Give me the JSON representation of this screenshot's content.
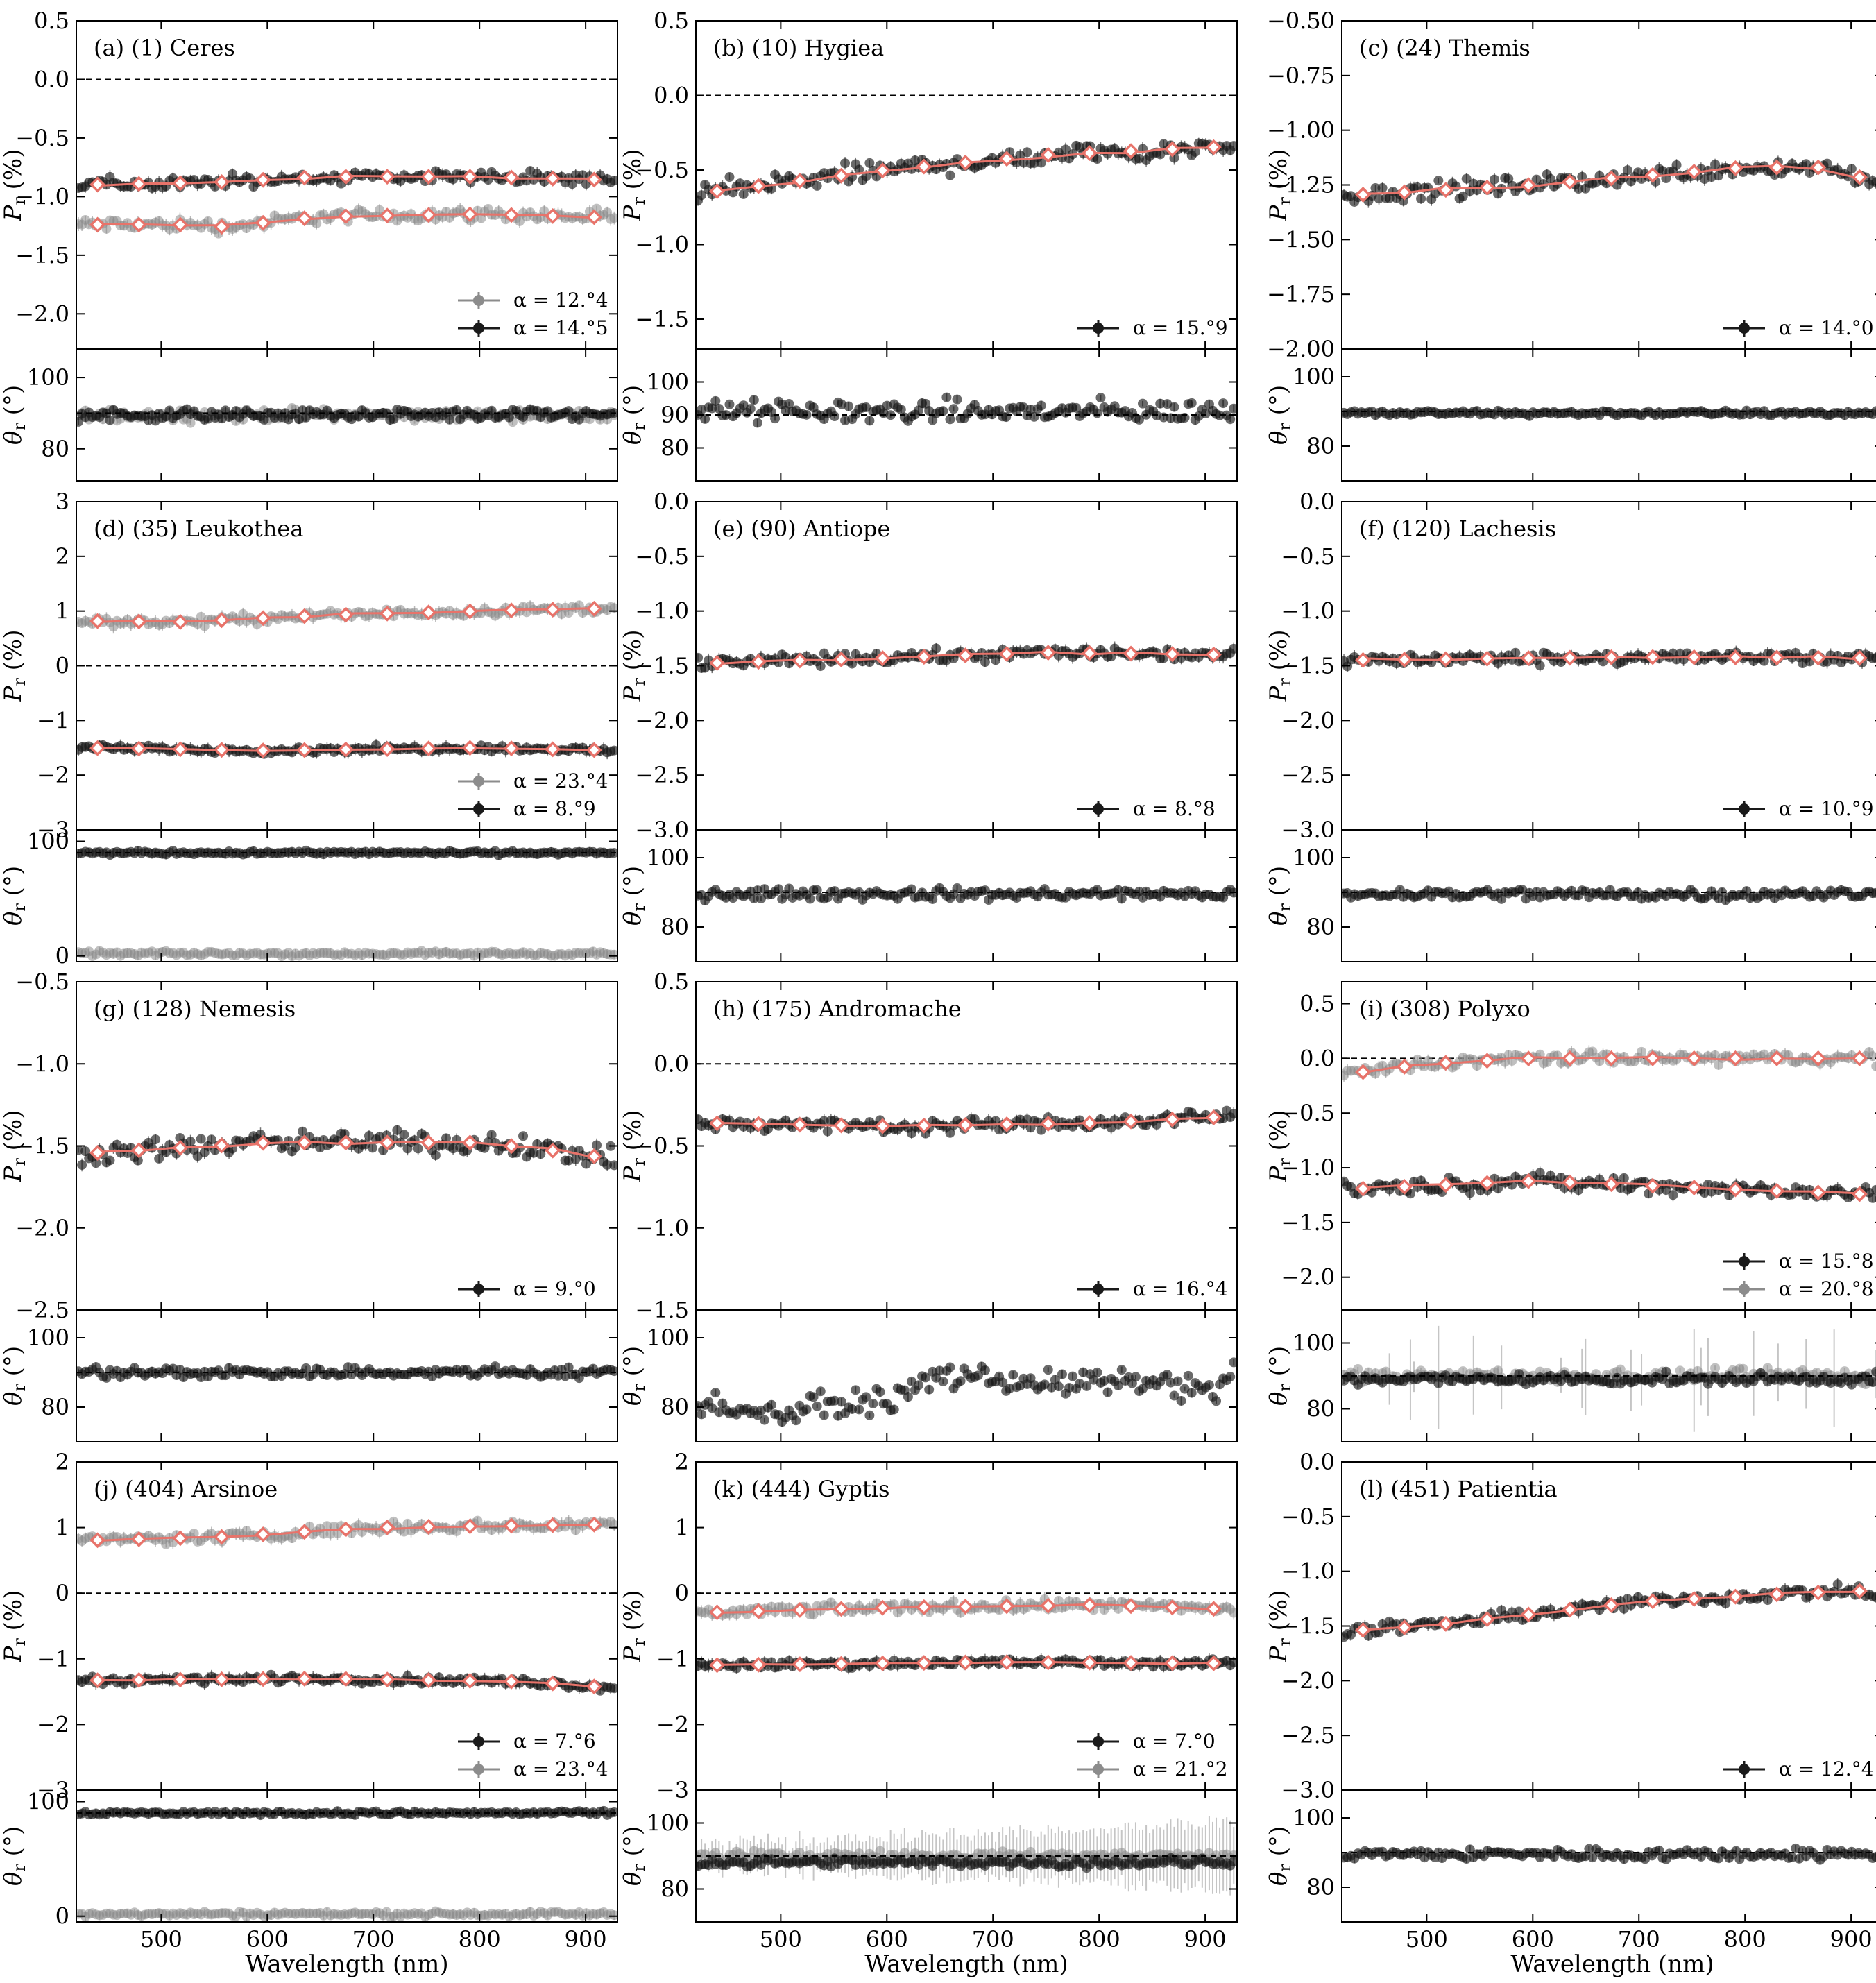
{
  "figure": {
    "xlabel": "Wavelength (nm)",
    "upper_ylabel": "P_r (%)",
    "lower_ylabel": "θ_r (°)"
  },
  "colors": {
    "dark_series": "#1a1a1a",
    "light_series": "#8c8c8c",
    "fit": "#e8736a"
  },
  "chart_data": [
    {
      "type": "scatter",
      "id": "a",
      "title": "(a) (1) Ceres",
      "xlim": [
        420,
        930
      ],
      "ylim": [
        -2.3,
        0.5
      ],
      "yticks": [
        0.5,
        0.0,
        -0.5,
        -1.0,
        -1.5,
        -2.0
      ],
      "ytick_labels": [
        "0.5",
        "0.0",
        "−0.5",
        "−1.0",
        "−1.5",
        "−2.0"
      ],
      "zero_line": true,
      "theta_ylim": [
        71,
        108
      ],
      "theta_yticks": [
        100,
        80
      ],
      "theta_ytick_labels": [
        "100",
        "80"
      ],
      "theta_ref": 90,
      "legend": [
        {
          "label": "α = 12.°4",
          "shade": "light"
        },
        {
          "label": "α = 14.°5",
          "shade": "dark"
        }
      ],
      "series": [
        {
          "shade": "dark",
          "label": "α = 14.°5",
          "pr": [
            [
              420,
              -0.9
            ],
            [
              550,
              -0.88
            ],
            [
              650,
              -0.83
            ],
            [
              800,
              -0.83
            ],
            [
              930,
              -0.86
            ]
          ],
          "scatter": 0.04,
          "theta": 89.5,
          "theta_scatter": 1.2
        },
        {
          "shade": "light",
          "label": "α = 12.°4",
          "pr": [
            [
              420,
              -1.24
            ],
            [
              540,
              -1.24
            ],
            [
              560,
              -1.26
            ],
            [
              650,
              -1.17
            ],
            [
              800,
              -1.15
            ],
            [
              930,
              -1.18
            ]
          ],
          "scatter": 0.04,
          "theta": 89.5,
          "theta_scatter": 1.2
        }
      ]
    },
    {
      "type": "scatter",
      "id": "b",
      "title": "(b) (10) Hygiea",
      "xlim": [
        420,
        930
      ],
      "ylim": [
        -1.7,
        0.5
      ],
      "yticks": [
        0.5,
        0.0,
        -0.5,
        -1.0,
        -1.5
      ],
      "ytick_labels": [
        "0.5",
        "0.0",
        "−0.5",
        "−1.0",
        "−1.5"
      ],
      "zero_line": true,
      "theta_ylim": [
        70,
        110
      ],
      "theta_yticks": [
        100,
        90,
        80
      ],
      "theta_ytick_labels": [
        "100",
        "90",
        "80"
      ],
      "theta_ref": 90,
      "legend": [
        {
          "label": "α = 15.°9",
          "shade": "dark"
        }
      ],
      "series": [
        {
          "shade": "dark",
          "label": "α = 15.°9",
          "pr": [
            [
              420,
              -0.66
            ],
            [
              600,
              -0.5
            ],
            [
              750,
              -0.4
            ],
            [
              930,
              -0.34
            ]
          ],
          "scatter": 0.05,
          "theta": 91,
          "theta_scatter": 2.5
        }
      ]
    },
    {
      "type": "scatter",
      "id": "c",
      "title": "(c) (24) Themis",
      "xlim": [
        420,
        930
      ],
      "ylim": [
        -2.0,
        -0.5
      ],
      "yticks": [
        -0.5,
        -0.75,
        -1.0,
        -1.25,
        -1.5,
        -1.75,
        -2.0
      ],
      "ytick_labels": [
        "−0.50",
        "−0.75",
        "−1.00",
        "−1.25",
        "−1.50",
        "−1.75",
        "−2.00"
      ],
      "zero_line": false,
      "theta_ylim": [
        70,
        108
      ],
      "theta_yticks": [
        100,
        80
      ],
      "theta_ytick_labels": [
        "100",
        "80"
      ],
      "theta_ref": 90,
      "legend": [
        {
          "label": "α = 14.°0",
          "shade": "dark"
        }
      ],
      "series": [
        {
          "shade": "dark",
          "label": "α = 14.°0",
          "pr": [
            [
              420,
              -1.3
            ],
            [
              600,
              -1.25
            ],
            [
              800,
              -1.17
            ],
            [
              880,
              -1.17
            ],
            [
              930,
              -1.25
            ]
          ],
          "scatter": 0.03,
          "theta": 89.5,
          "theta_scatter": 0.6
        }
      ]
    },
    {
      "type": "scatter",
      "id": "d",
      "title": "(d) (35) Leukothea",
      "xlim": [
        420,
        930
      ],
      "ylim": [
        -3,
        3
      ],
      "yticks": [
        3,
        2,
        1,
        0,
        -1,
        -2,
        -3
      ],
      "ytick_labels": [
        "3",
        "2",
        "1",
        "0",
        "−1",
        "−2",
        "−3"
      ],
      "zero_line": true,
      "theta_ylim": [
        -5,
        110
      ],
      "theta_yticks": [
        100,
        0
      ],
      "theta_ytick_labels": [
        "100",
        "0"
      ],
      "theta_ref": 90,
      "legend": [
        {
          "label": "α = 23.°4",
          "shade": "light"
        },
        {
          "label": "α = 8.°9",
          "shade": "dark"
        }
      ],
      "series": [
        {
          "shade": "light",
          "label": "α = 23.°4",
          "pr": [
            [
              420,
              0.82
            ],
            [
              520,
              0.8
            ],
            [
              650,
              0.92
            ],
            [
              800,
              1.0
            ],
            [
              930,
              1.05
            ]
          ],
          "scatter": 0.06,
          "theta": 2,
          "theta_scatter": 1.5
        },
        {
          "shade": "dark",
          "label": "α = 8.°9",
          "pr": [
            [
              420,
              -1.5
            ],
            [
              600,
              -1.55
            ],
            [
              800,
              -1.5
            ],
            [
              930,
              -1.55
            ]
          ],
          "scatter": 0.04,
          "theta": 90,
          "theta_scatter": 1.2
        }
      ]
    },
    {
      "type": "scatter",
      "id": "e",
      "title": "(e) (90) Antiope",
      "xlim": [
        420,
        930
      ],
      "ylim": [
        -3.0,
        0.0
      ],
      "yticks": [
        0.0,
        -0.5,
        -1.0,
        -1.5,
        -2.0,
        -2.5,
        -3.0
      ],
      "ytick_labels": [
        "0.0",
        "−0.5",
        "−1.0",
        "−1.5",
        "−2.0",
        "−2.5",
        "−3.0"
      ],
      "zero_line": false,
      "theta_ylim": [
        70,
        108
      ],
      "theta_yticks": [
        100,
        80
      ],
      "theta_ytick_labels": [
        "100",
        "80"
      ],
      "theta_ref": 90,
      "legend": [
        {
          "label": "α = 8.°8",
          "shade": "dark"
        }
      ],
      "series": [
        {
          "shade": "dark",
          "label": "α = 8.°8",
          "pr": [
            [
              420,
              -1.48
            ],
            [
              600,
              -1.43
            ],
            [
              750,
              -1.38
            ],
            [
              930,
              -1.4
            ]
          ],
          "scatter": 0.04,
          "theta": 89.5,
          "theta_scatter": 1.2
        }
      ]
    },
    {
      "type": "scatter",
      "id": "f",
      "title": "(f) (120) Lachesis",
      "xlim": [
        420,
        930
      ],
      "ylim": [
        -3.0,
        0.0
      ],
      "yticks": [
        0.0,
        -0.5,
        -1.0,
        -1.5,
        -2.0,
        -2.5,
        -3.0
      ],
      "ytick_labels": [
        "0.0",
        "−0.5",
        "−1.0",
        "−1.5",
        "−2.0",
        "−2.5",
        "−3.0"
      ],
      "zero_line": false,
      "theta_ylim": [
        70,
        108
      ],
      "theta_yticks": [
        100,
        80
      ],
      "theta_ytick_labels": [
        "100",
        "80"
      ],
      "theta_ref": 90,
      "legend": [
        {
          "label": "α = 10.°9",
          "shade": "dark"
        }
      ],
      "series": [
        {
          "shade": "dark",
          "label": "α = 10.°9",
          "pr": [
            [
              420,
              -1.45
            ],
            [
              700,
              -1.42
            ],
            [
              930,
              -1.43
            ]
          ],
          "scatter": 0.04,
          "theta": 89.5,
          "theta_scatter": 1.2
        }
      ]
    },
    {
      "type": "scatter",
      "id": "g",
      "title": "(g) (128) Nemesis",
      "xlim": [
        420,
        930
      ],
      "ylim": [
        -2.5,
        -0.5
      ],
      "yticks": [
        -0.5,
        -1.0,
        -1.5,
        -2.0,
        -2.5
      ],
      "ytick_labels": [
        "−0.5",
        "−1.0",
        "−1.5",
        "−2.0",
        "−2.5"
      ],
      "zero_line": false,
      "theta_ylim": [
        70,
        108
      ],
      "theta_yticks": [
        100,
        80
      ],
      "theta_ytick_labels": [
        "100",
        "80"
      ],
      "theta_ref": 90,
      "legend": [
        {
          "label": "α = 9.°0",
          "shade": "dark"
        }
      ],
      "series": [
        {
          "shade": "dark",
          "label": "α = 9.°0",
          "pr": [
            [
              420,
              -1.55
            ],
            [
              600,
              -1.48
            ],
            [
              800,
              -1.48
            ],
            [
              900,
              -1.55
            ],
            [
              930,
              -1.6
            ]
          ],
          "scatter": 0.05,
          "theta": 90,
          "theta_scatter": 1.2
        }
      ]
    },
    {
      "type": "scatter",
      "id": "h",
      "title": "(h) (175) Andromache",
      "xlim": [
        420,
        930
      ],
      "ylim": [
        -1.5,
        0.5
      ],
      "yticks": [
        0.5,
        0.0,
        -0.5,
        -1.0,
        -1.5
      ],
      "ytick_labels": [
        "0.5",
        "0.0",
        "−0.5",
        "−1.0",
        "−1.5"
      ],
      "zero_line": true,
      "theta_ylim": [
        70,
        108
      ],
      "theta_yticks": [
        100,
        80
      ],
      "theta_ytick_labels": [
        "100",
        "80"
      ],
      "theta_ref": null,
      "legend": [
        {
          "label": "α = 16.°4",
          "shade": "dark"
        }
      ],
      "series": [
        {
          "shade": "dark",
          "label": "α = 16.°4",
          "pr": [
            [
              420,
              -0.36
            ],
            [
              600,
              -0.38
            ],
            [
              800,
              -0.36
            ],
            [
              930,
              -0.32
            ]
          ],
          "scatter": 0.03,
          "theta_curve": [
            [
              420,
              82
            ],
            [
              470,
              78
            ],
            [
              600,
              82
            ],
            [
              650,
              89
            ],
            [
              750,
              87
            ],
            [
              850,
              87
            ],
            [
              910,
              84
            ],
            [
              930,
              93
            ]
          ],
          "theta_scatter": 2.5
        }
      ]
    },
    {
      "type": "scatter",
      "id": "i",
      "title": "(i) (308) Polyxo",
      "xlim": [
        420,
        930
      ],
      "ylim": [
        -2.3,
        0.7
      ],
      "yticks": [
        0.5,
        0.0,
        -0.5,
        -1.0,
        -1.5,
        -2.0
      ],
      "ytick_labels": [
        "0.5",
        "0.0",
        "−0.5",
        "−1.0",
        "−1.5",
        "−2.0"
      ],
      "zero_line": true,
      "theta_ylim": [
        70,
        110
      ],
      "theta_yticks": [
        100,
        80
      ],
      "theta_ytick_labels": [
        "100",
        "80"
      ],
      "theta_ref": 90,
      "legend": [
        {
          "label": "α = 15.°8",
          "shade": "dark"
        },
        {
          "label": "α = 20.°8",
          "shade": "light"
        }
      ],
      "series": [
        {
          "shade": "light",
          "label": "α = 20.°8",
          "pr": [
            [
              420,
              -0.15
            ],
            [
              500,
              -0.05
            ],
            [
              600,
              0.0
            ],
            [
              930,
              0.0
            ]
          ],
          "scatter": 0.04,
          "theta": 90,
          "theta_scatter": 1.5,
          "big_errors": true
        },
        {
          "shade": "dark",
          "label": "α = 15.°8",
          "pr": [
            [
              420,
              -1.2
            ],
            [
              600,
              -1.12
            ],
            [
              800,
              -1.2
            ],
            [
              930,
              -1.25
            ]
          ],
          "scatter": 0.05,
          "theta": 89,
          "theta_scatter": 1.2
        }
      ]
    },
    {
      "type": "scatter",
      "id": "j",
      "title": "(j) (404) Arsinoe",
      "xlim": [
        420,
        930
      ],
      "ylim": [
        -3,
        2
      ],
      "yticks": [
        2,
        1,
        0,
        -1,
        -2,
        -3
      ],
      "ytick_labels": [
        "2",
        "1",
        "0",
        "−1",
        "−2",
        "−3"
      ],
      "zero_line": true,
      "theta_ylim": [
        -5,
        110
      ],
      "theta_yticks": [
        100,
        0
      ],
      "theta_ytick_labels": [
        "100",
        "0"
      ],
      "theta_ref": 90,
      "legend": [
        {
          "label": "α = 7.°6",
          "shade": "dark"
        },
        {
          "label": "α = 23.°4",
          "shade": "light"
        }
      ],
      "series": [
        {
          "shade": "light",
          "label": "α = 23.°4",
          "pr": [
            [
              420,
              0.8
            ],
            [
              550,
              0.85
            ],
            [
              700,
              1.0
            ],
            [
              930,
              1.05
            ]
          ],
          "scatter": 0.06,
          "theta": 2,
          "theta_scatter": 1.5
        },
        {
          "shade": "dark",
          "label": "α = 7.°6",
          "pr": [
            [
              420,
              -1.33
            ],
            [
              650,
              -1.3
            ],
            [
              850,
              -1.35
            ],
            [
              930,
              -1.45
            ]
          ],
          "scatter": 0.04,
          "theta": 90,
          "theta_scatter": 1.2
        }
      ]
    },
    {
      "type": "scatter",
      "id": "k",
      "title": "(k) (444) Gyptis",
      "xlim": [
        420,
        930
      ],
      "ylim": [
        -3,
        2
      ],
      "yticks": [
        2,
        1,
        0,
        -1,
        -2,
        -3
      ],
      "ytick_labels": [
        "2",
        "1",
        "0",
        "−1",
        "−2",
        "−3"
      ],
      "zero_line": true,
      "theta_ylim": [
        70,
        110
      ],
      "theta_yticks": [
        100,
        80
      ],
      "theta_ytick_labels": [
        "100",
        "80"
      ],
      "theta_ref": 90,
      "legend": [
        {
          "label": "α = 7.°0",
          "shade": "dark"
        },
        {
          "label": "α = 21.°2",
          "shade": "light"
        }
      ],
      "series": [
        {
          "shade": "light",
          "label": "α = 21.°2",
          "pr": [
            [
              420,
              -0.3
            ],
            [
              600,
              -0.22
            ],
            [
              800,
              -0.18
            ],
            [
              930,
              -0.25
            ]
          ],
          "scatter": 0.06,
          "theta": 90,
          "theta_scatter": 1.0,
          "dense_errors": true
        },
        {
          "shade": "dark",
          "label": "α = 7.°0",
          "pr": [
            [
              420,
              -1.1
            ],
            [
              700,
              -1.05
            ],
            [
              930,
              -1.07
            ]
          ],
          "scatter": 0.04,
          "theta": 88,
          "theta_scatter": 1.0
        }
      ]
    },
    {
      "type": "scatter",
      "id": "l",
      "title": "(l) (451) Patientia",
      "xlim": [
        420,
        930
      ],
      "ylim": [
        -3.0,
        0.0
      ],
      "yticks": [
        0.0,
        -0.5,
        -1.0,
        -1.5,
        -2.0,
        -2.5,
        -3.0
      ],
      "ytick_labels": [
        "0.0",
        "−0.5",
        "−1.0",
        "−1.5",
        "−2.0",
        "−2.5",
        "−3.0"
      ],
      "zero_line": false,
      "theta_ylim": [
        70,
        108
      ],
      "theta_yticks": [
        100,
        80
      ],
      "theta_ytick_labels": [
        "100",
        "80"
      ],
      "theta_ref": 90,
      "legend": [
        {
          "label": "α = 12.°4",
          "shade": "dark"
        }
      ],
      "series": [
        {
          "shade": "dark",
          "label": "α = 12.°4",
          "pr": [
            [
              420,
              -1.55
            ],
            [
              500,
              -1.5
            ],
            [
              700,
              -1.28
            ],
            [
              850,
              -1.2
            ],
            [
              910,
              -1.18
            ],
            [
              930,
              -1.28
            ]
          ],
          "scatter": 0.04,
          "theta": 89.5,
          "theta_scatter": 1.2
        }
      ]
    }
  ],
  "xaxis": {
    "ticks": [
      500,
      600,
      700,
      800,
      900
    ],
    "tick_labels": [
      "500",
      "600",
      "700",
      "800",
      "900"
    ]
  }
}
